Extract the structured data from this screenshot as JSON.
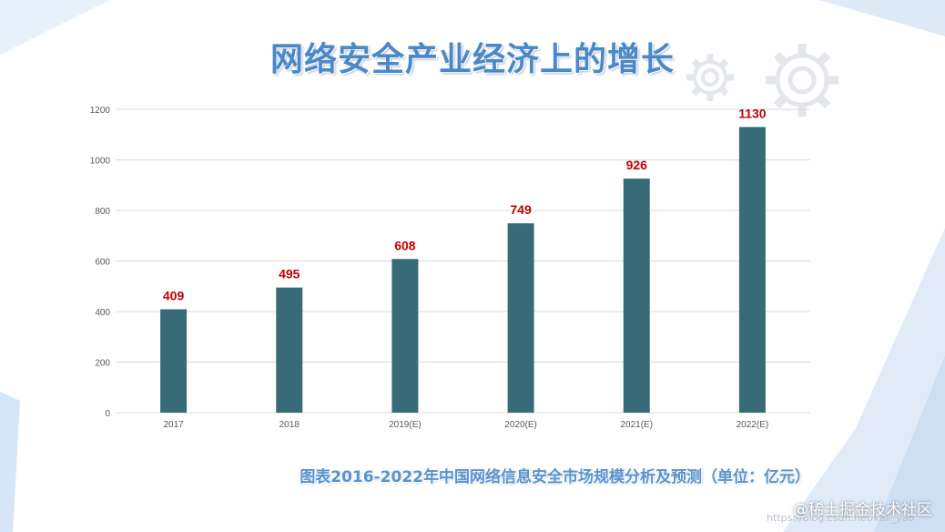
{
  "title": "网络安全产业经济上的增长",
  "caption": "图表2016-2022年中国网络信息安全市场规模分析及预测（单位：亿元）",
  "watermark": {
    "url": "https://blog.csdn.net/kali_yao",
    "logo": "@稀土掘金技术社区"
  },
  "colors": {
    "bar": "#386b78",
    "value_label": "#c00000",
    "title": "#4a88c8",
    "caption": "#5a93cc",
    "grid": "#d9d9d9",
    "tick": "#595959",
    "background_accent": "#e8f1fb"
  },
  "icons": [
    "gear-icon",
    "gear-icon"
  ],
  "chart_data": {
    "type": "bar",
    "categories": [
      "2017",
      "2018",
      "2019(E)",
      "2020(E)",
      "2021(E)",
      "2022(E)"
    ],
    "values": [
      409,
      495,
      608,
      749,
      926,
      1130
    ],
    "value_labels": [
      "409",
      "495",
      "608",
      "749",
      "926",
      "1130"
    ],
    "ylim": [
      0,
      1200
    ],
    "yticks": [
      0,
      200,
      400,
      600,
      800,
      1000,
      1200
    ],
    "grid": true,
    "legend": "none"
  }
}
